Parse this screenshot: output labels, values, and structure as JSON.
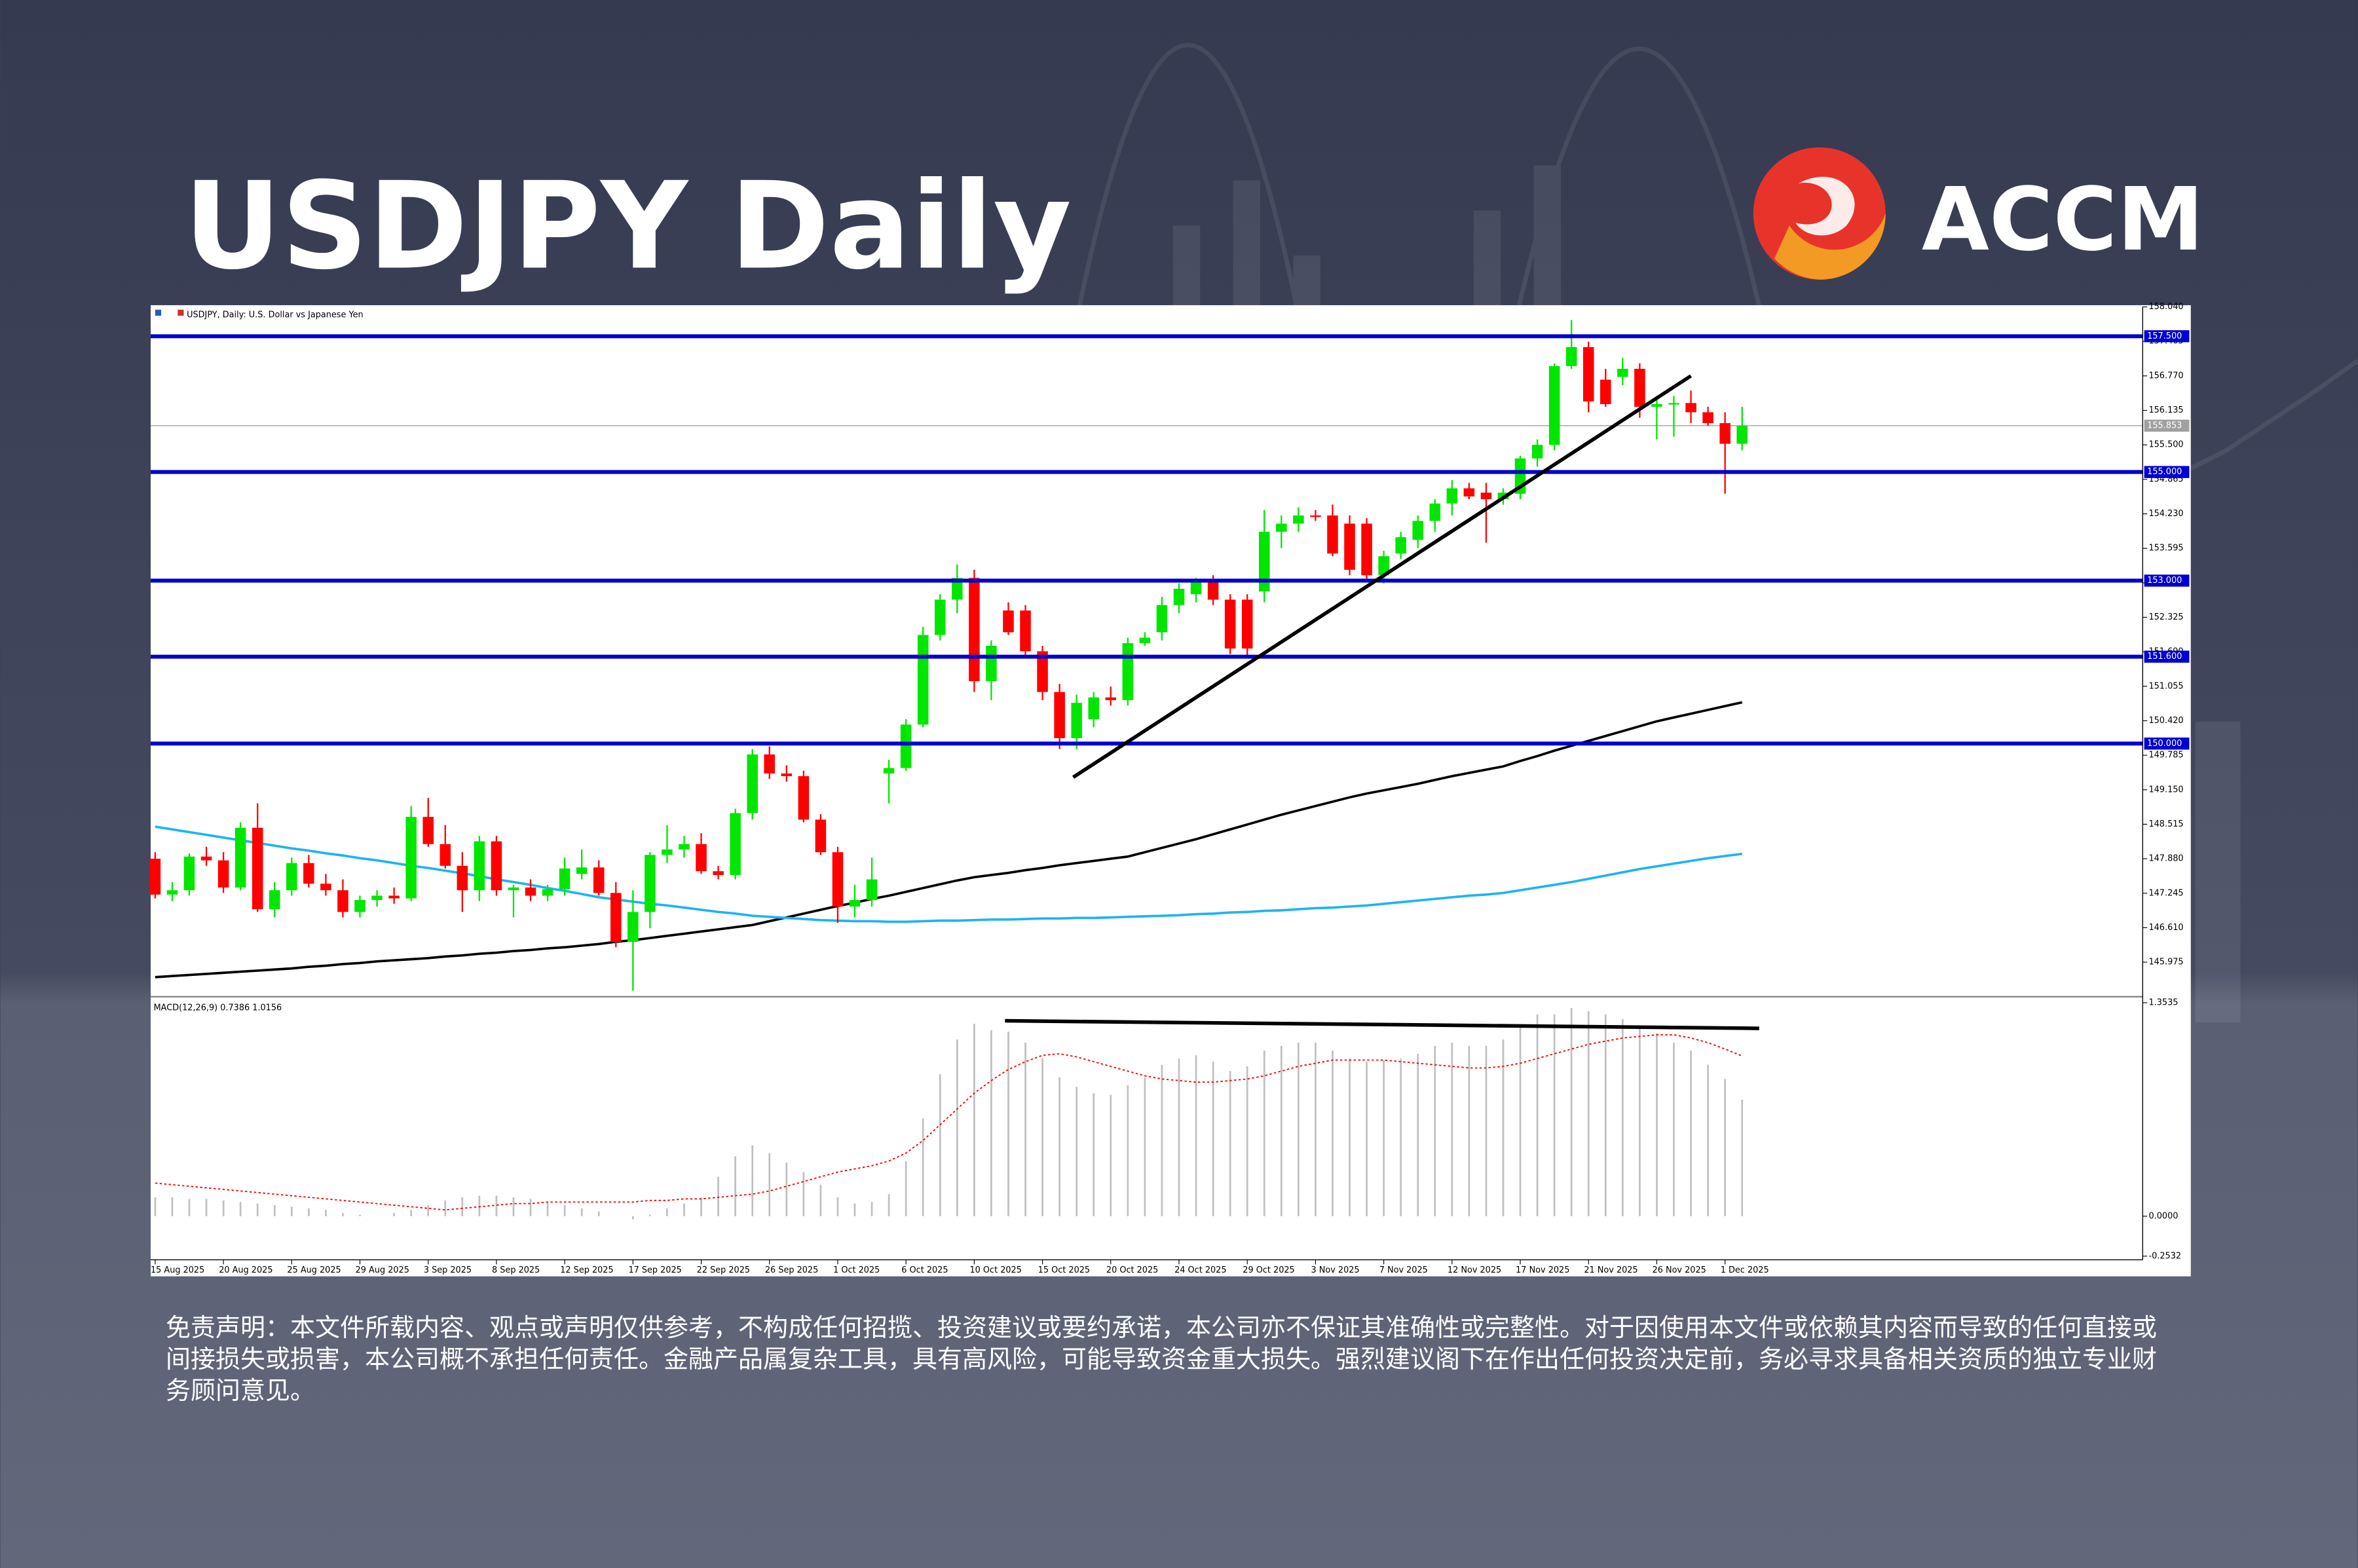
{
  "header": {
    "title": "USDJPY Daily",
    "brand": "ACCM"
  },
  "chart_data": [
    {
      "type": "candlestick",
      "title": "USDJPY, Daily: U.S. Dollar vs Japanese Yen",
      "categories": [
        "15 Aug 2025",
        null,
        null,
        null,
        "20 Aug 2025",
        null,
        null,
        null,
        "25 Aug 2025",
        null,
        null,
        null,
        "29 Aug 2025",
        null,
        null,
        null,
        "3 Sep 2025",
        null,
        null,
        null,
        "8 Sep 2025",
        null,
        null,
        null,
        "12 Sep 2025",
        null,
        null,
        null,
        "17 Sep 2025",
        null,
        null,
        null,
        "22 Sep 2025",
        null,
        null,
        null,
        "26 Sep 2025",
        null,
        null,
        null,
        "1 Oct 2025",
        null,
        null,
        null,
        "6 Oct 2025",
        null,
        null,
        null,
        "10 Oct 2025",
        null,
        null,
        null,
        "15 Oct 2025",
        null,
        null,
        null,
        "20 Oct 2025",
        null,
        null,
        null,
        "24 Oct 2025",
        null,
        null,
        null,
        "29 Oct 2025",
        null,
        null,
        null,
        "3 Nov 2025",
        null,
        null,
        null,
        "7 Nov 2025",
        null,
        null,
        null,
        "12 Nov 2025",
        null,
        null,
        null,
        "17 Nov 2025",
        null,
        null,
        null,
        "21 Nov 2025",
        null,
        null,
        null,
        "26 Nov 2025",
        null,
        null,
        null,
        "1 Dec 2025",
        null
      ],
      "open": [
        147.88,
        147.22,
        147.3,
        147.92,
        147.85,
        147.35,
        148.45,
        146.95,
        147.3,
        147.8,
        147.42,
        147.3,
        146.9,
        147.12,
        147.2,
        147.15,
        148.65,
        148.15,
        147.75,
        147.3,
        148.2,
        147.3,
        147.35,
        147.2,
        147.32,
        147.6,
        147.72,
        147.25,
        146.35,
        146.9,
        147.95,
        148.05,
        148.15,
        147.65,
        147.58,
        148.72,
        149.8,
        149.45,
        149.4,
        148.6,
        148.0,
        147.0,
        147.12,
        149.45,
        149.55,
        150.35,
        152.0,
        152.65,
        153.05,
        151.15,
        152.45,
        152.45,
        151.7,
        150.95,
        150.1,
        150.45,
        150.85,
        150.8,
        151.85,
        152.05,
        152.55,
        152.75,
        153.0,
        152.65,
        152.65,
        152.8,
        153.9,
        154.05,
        154.2,
        154.2,
        154.05,
        154.05,
        153.1,
        153.5,
        153.75,
        154.1,
        154.42,
        154.7,
        154.62,
        154.5,
        154.6,
        155.25,
        155.5,
        156.95,
        157.3,
        156.7,
        156.75,
        156.9,
        156.2,
        156.25,
        156.27,
        156.1,
        155.9,
        155.52
      ],
      "high": [
        148.0,
        147.45,
        147.98,
        148.1,
        148.0,
        148.55,
        148.9,
        147.45,
        147.9,
        147.95,
        147.6,
        147.5,
        147.2,
        147.3,
        147.35,
        148.85,
        149.0,
        148.5,
        148.0,
        148.3,
        148.3,
        147.4,
        147.5,
        147.4,
        147.9,
        148.05,
        147.85,
        147.45,
        147.3,
        148.0,
        148.5,
        148.3,
        148.35,
        147.75,
        148.8,
        149.9,
        149.95,
        149.6,
        149.5,
        148.7,
        148.1,
        147.4,
        147.9,
        149.7,
        150.45,
        152.15,
        152.75,
        153.3,
        153.2,
        151.9,
        152.6,
        152.55,
        151.8,
        151.1,
        150.9,
        150.95,
        151.05,
        151.95,
        152.05,
        152.7,
        152.95,
        153.05,
        153.1,
        152.75,
        152.75,
        154.3,
        154.2,
        154.35,
        154.3,
        154.4,
        154.2,
        154.15,
        153.55,
        153.9,
        154.2,
        154.5,
        154.85,
        154.8,
        154.8,
        154.7,
        155.3,
        155.6,
        157.0,
        157.8,
        157.4,
        156.9,
        157.1,
        157.0,
        156.4,
        156.4,
        156.5,
        156.2,
        156.1,
        156.2
      ],
      "low": [
        147.15,
        147.1,
        147.2,
        147.75,
        147.25,
        147.3,
        146.9,
        146.8,
        147.2,
        147.35,
        147.2,
        146.8,
        146.8,
        147.0,
        147.05,
        147.1,
        148.1,
        147.7,
        146.9,
        147.1,
        147.2,
        146.8,
        147.1,
        147.1,
        147.2,
        147.5,
        147.2,
        146.25,
        145.45,
        146.6,
        147.8,
        147.9,
        147.6,
        147.5,
        147.5,
        148.6,
        149.35,
        149.3,
        148.55,
        147.95,
        146.7,
        146.8,
        147.0,
        148.9,
        149.5,
        150.3,
        151.9,
        152.4,
        150.95,
        150.8,
        152.0,
        151.6,
        150.8,
        149.9,
        149.9,
        150.3,
        150.7,
        150.7,
        151.8,
        151.9,
        152.4,
        152.6,
        152.55,
        151.65,
        151.6,
        152.6,
        153.6,
        153.9,
        154.1,
        153.45,
        153.1,
        153.0,
        152.95,
        153.4,
        153.6,
        153.9,
        154.2,
        154.5,
        153.7,
        154.4,
        154.5,
        155.1,
        155.4,
        156.9,
        156.1,
        156.2,
        156.6,
        156.0,
        155.6,
        155.65,
        155.9,
        155.85,
        154.6,
        155.4
      ],
      "close": [
        147.22,
        147.3,
        147.92,
        147.85,
        147.35,
        148.45,
        146.95,
        147.3,
        147.8,
        147.42,
        147.3,
        146.9,
        147.12,
        147.2,
        147.15,
        148.65,
        148.15,
        147.75,
        147.3,
        148.2,
        147.3,
        147.35,
        147.2,
        147.32,
        147.7,
        147.72,
        147.25,
        146.35,
        146.9,
        147.95,
        148.05,
        148.15,
        147.65,
        147.58,
        148.72,
        149.8,
        149.45,
        149.4,
        148.6,
        148.0,
        147.0,
        147.12,
        147.5,
        149.55,
        150.35,
        152.0,
        152.65,
        153.05,
        151.15,
        151.8,
        152.05,
        151.7,
        150.95,
        150.1,
        150.75,
        150.85,
        150.8,
        151.85,
        151.95,
        152.55,
        152.85,
        153.0,
        152.65,
        151.75,
        151.75,
        153.9,
        154.05,
        154.2,
        154.18,
        153.5,
        153.2,
        153.1,
        153.45,
        153.8,
        154.1,
        154.42,
        154.7,
        154.55,
        154.5,
        154.62,
        155.25,
        155.5,
        156.95,
        157.3,
        156.3,
        156.25,
        156.9,
        156.2,
        156.25,
        156.27,
        156.1,
        155.9,
        155.52,
        155.85
      ],
      "up_color": "#00e600",
      "down_color": "#ff0000",
      "lines": [
        {
          "color": "#000000",
          "values": [
            145.7,
            145.72,
            145.74,
            145.76,
            145.78,
            145.8,
            145.82,
            145.84,
            145.86,
            145.89,
            145.91,
            145.94,
            145.96,
            145.99,
            146.01,
            146.03,
            146.05,
            146.08,
            146.1,
            146.13,
            146.15,
            146.18,
            146.2,
            146.23,
            146.25,
            146.28,
            146.31,
            146.35,
            146.38,
            146.42,
            146.46,
            146.5,
            146.54,
            146.58,
            146.62,
            146.66,
            146.73,
            146.8,
            146.87,
            146.94,
            147.01,
            147.07,
            147.14,
            147.2,
            147.27,
            147.34,
            147.41,
            147.48,
            147.54,
            147.58,
            147.62,
            147.67,
            147.71,
            147.76,
            147.8,
            147.84,
            147.88,
            147.92,
            148.0,
            148.08,
            148.16,
            148.24,
            148.33,
            148.42,
            148.51,
            148.6,
            148.69,
            148.77,
            148.85,
            148.93,
            149.01,
            149.08,
            149.14,
            149.2,
            149.26,
            149.33,
            149.4,
            149.46,
            149.52,
            149.58,
            149.68,
            149.77,
            149.87,
            149.96,
            150.05,
            150.14,
            150.23,
            150.32,
            150.41,
            150.48,
            150.55,
            150.62,
            150.69,
            150.76
          ]
        },
        {
          "color": "#1eb4f0",
          "values": [
            148.47,
            148.42,
            148.37,
            148.32,
            148.27,
            148.22,
            148.17,
            148.12,
            148.07,
            148.03,
            147.98,
            147.94,
            147.89,
            147.85,
            147.8,
            147.75,
            147.71,
            147.66,
            147.61,
            147.56,
            147.5,
            147.45,
            147.4,
            147.34,
            147.29,
            147.23,
            147.17,
            147.13,
            147.09,
            147.05,
            147.02,
            146.98,
            146.94,
            146.9,
            146.87,
            146.83,
            146.81,
            146.79,
            146.77,
            146.75,
            146.74,
            146.73,
            146.73,
            146.72,
            146.72,
            146.73,
            146.74,
            146.74,
            146.75,
            146.76,
            146.76,
            146.77,
            146.78,
            146.78,
            146.79,
            146.79,
            146.8,
            146.81,
            146.82,
            146.83,
            146.84,
            146.86,
            146.87,
            146.89,
            146.9,
            146.92,
            146.93,
            146.95,
            146.97,
            146.98,
            147.0,
            147.02,
            147.05,
            147.08,
            147.11,
            147.14,
            147.17,
            147.2,
            147.22,
            147.25,
            147.3,
            147.35,
            147.4,
            147.45,
            147.51,
            147.57,
            147.63,
            147.69,
            147.74,
            147.79,
            147.84,
            147.89,
            147.93,
            147.97
          ]
        }
      ],
      "levels": [
        {
          "value": 157.5,
          "label": "157.500"
        },
        {
          "value": 155,
          "label": "155.000"
        },
        {
          "value": 153,
          "label": "153.000"
        },
        {
          "value": 151.6,
          "label": "151.600"
        },
        {
          "value": 150,
          "label": "150.000"
        }
      ],
      "level_color": "#0000d0",
      "current_price": {
        "value": 155.853,
        "label": "155.853"
      },
      "trendlines": [
        {
          "x": [
            53.8,
            90
          ],
          "y": [
            149.38,
            156.77
          ]
        }
      ],
      "ylim": [
        145.367,
        158.03
      ],
      "yticks": [
        {
          "value": 158.04,
          "label": "158.040"
        },
        {
          "value": 157.405,
          "label": "157.405"
        },
        {
          "value": 156.77,
          "label": "156.770"
        },
        {
          "value": 156.135,
          "label": "156.135"
        },
        {
          "value": 155.5,
          "label": "155.500"
        },
        {
          "value": 154.865,
          "label": "154.865"
        },
        {
          "value": 154.23,
          "label": "154.230"
        },
        {
          "value": 153.595,
          "label": "153.595"
        },
        {
          "value": 152.96,
          "label": "152.960"
        },
        {
          "value": 152.325,
          "label": "152.325"
        },
        {
          "value": 151.69,
          "label": "151.690"
        },
        {
          "value": 151.055,
          "label": "151.055"
        },
        {
          "value": 150.42,
          "label": "150.420"
        },
        {
          "value": 149.785,
          "label": "149.785"
        },
        {
          "value": 149.15,
          "label": "149.150"
        },
        {
          "value": 148.515,
          "label": "148.515"
        },
        {
          "value": 147.88,
          "label": "147.880"
        },
        {
          "value": 147.245,
          "label": "147.245"
        },
        {
          "value": 146.61,
          "label": "146.610"
        },
        {
          "value": 145.975,
          "label": "145.975"
        }
      ]
    },
    {
      "type": "macd",
      "title": "MACD(12,26,9) 0.7386 1.0156",
      "histogram": {
        "color": "#c0c0c0",
        "values": [
          0.12,
          0.12,
          0.11,
          0.11,
          0.1,
          0.09,
          0.08,
          0.07,
          0.06,
          0.05,
          0.04,
          0.02,
          0.01,
          0.0,
          0.02,
          0.04,
          0.07,
          0.1,
          0.12,
          0.13,
          0.13,
          0.12,
          0.11,
          0.09,
          0.07,
          0.05,
          0.03,
          0.0,
          -0.02,
          0.01,
          0.05,
          0.08,
          0.12,
          0.25,
          0.38,
          0.45,
          0.4,
          0.34,
          0.28,
          0.2,
          0.12,
          0.08,
          0.09,
          0.14,
          0.35,
          0.62,
          0.9,
          1.12,
          1.22,
          1.18,
          1.17,
          1.1,
          1.0,
          0.88,
          0.82,
          0.78,
          0.77,
          0.83,
          0.88,
          0.96,
          1.0,
          1.02,
          0.98,
          0.92,
          0.95,
          1.05,
          1.08,
          1.1,
          1.1,
          1.05,
          1.0,
          0.98,
          0.99,
          1.0,
          1.03,
          1.08,
          1.1,
          1.08,
          1.08,
          1.12,
          1.2,
          1.28,
          1.28,
          1.32,
          1.3,
          1.28,
          1.25,
          1.2,
          1.16,
          1.1,
          1.05,
          0.96,
          0.87,
          0.7386
        ]
      },
      "signal": {
        "color": "#ff0000",
        "values": [
          0.21,
          0.2,
          0.19,
          0.18,
          0.17,
          0.16,
          0.15,
          0.14,
          0.13,
          0.12,
          0.11,
          0.1,
          0.09,
          0.08,
          0.07,
          0.06,
          0.05,
          0.04,
          0.05,
          0.06,
          0.07,
          0.08,
          0.08,
          0.09,
          0.09,
          0.09,
          0.09,
          0.09,
          0.09,
          0.1,
          0.1,
          0.11,
          0.11,
          0.12,
          0.13,
          0.14,
          0.16,
          0.19,
          0.22,
          0.25,
          0.28,
          0.3,
          0.32,
          0.35,
          0.4,
          0.48,
          0.58,
          0.68,
          0.78,
          0.86,
          0.93,
          0.98,
          1.02,
          1.03,
          1.01,
          0.98,
          0.95,
          0.92,
          0.89,
          0.87,
          0.86,
          0.85,
          0.85,
          0.86,
          0.87,
          0.89,
          0.92,
          0.95,
          0.97,
          0.99,
          0.99,
          0.99,
          0.99,
          0.98,
          0.97,
          0.96,
          0.95,
          0.94,
          0.94,
          0.95,
          0.97,
          1.0,
          1.03,
          1.06,
          1.09,
          1.11,
          1.13,
          1.14,
          1.15,
          1.15,
          1.13,
          1.1,
          1.06,
          1.0156
        ]
      },
      "trendlines": [
        {
          "x": [
            49.8,
            94
          ],
          "y": [
            1.239,
            1.191
          ]
        }
      ],
      "ylim": [
        -0.2764,
        1.382
      ],
      "yticks": [
        1.3535,
        {
          "value": 0,
          "label": "0.0000"
        },
        -0.2532
      ]
    }
  ],
  "disclaimer": "免责声明：本文件所载内容、观点或声明仅供参考，不构成任何招揽、投资建议或要约承诺，本公司亦不保证其准确性或完整性。对于因使用本文件或依赖其内容而导致的任何直接或间接损失或损害，本公司概不承担任何责任。金融产品属复杂工具，具有高风险，可能导致资金重大损失。强烈建议阁下在作出任何投资决定前，务必寻求具备相关资质的独立专业财务顾问意见。"
}
